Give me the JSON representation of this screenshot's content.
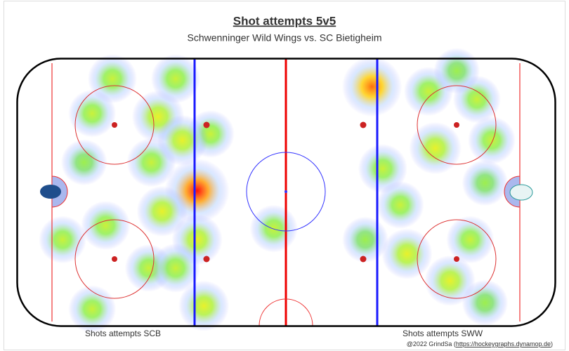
{
  "chart_data": {
    "type": "heatmap",
    "title": "Shot attempts 5v5",
    "subtitle": "Schwenninger Wild Wings vs. SC Bietigheim",
    "left_label": "Shots attempts SCB",
    "right_label": "Shots attempts SWW",
    "credit": [
      "@2022 GrindSa (",
      "https://hockeygraphs.dynamop.de",
      ")"
    ],
    "xlim": [
      -100,
      100
    ],
    "ylim": [
      -42.5,
      42.5
    ],
    "x": [
      -33,
      32,
      -47.5,
      -64.5,
      -41,
      -72,
      -75,
      -50,
      -83,
      -67,
      -46,
      -33,
      -51,
      -72,
      -30.5,
      -28,
      -4.5,
      36,
      42.5,
      29.5,
      55.5,
      53,
      71,
      76.5,
      74,
      45,
      61,
      68.5,
      74,
      63.5,
      -38.5,
      -41
    ],
    "y": [
      0.5,
      33.5,
      24,
      36,
      36,
      25,
      9.5,
      9.5,
      -15,
      -10.5,
      -6,
      -15,
      -24,
      -37,
      -36,
      18.5,
      -11.5,
      7.5,
      -4,
      -15,
      14,
      32,
      29.5,
      16.5,
      3,
      -19.5,
      -28,
      -15,
      -35,
      38.5,
      16.5,
      -24
    ],
    "values": [
      1.0,
      0.85,
      0.6,
      0.5,
      0.5,
      0.45,
      0.4,
      0.5,
      0.45,
      0.5,
      0.55,
      0.55,
      0.45,
      0.45,
      0.55,
      0.45,
      0.45,
      0.5,
      0.45,
      0.4,
      0.6,
      0.5,
      0.45,
      0.45,
      0.4,
      0.55,
      0.55,
      0.45,
      0.4,
      0.4,
      0.55,
      0.5
    ]
  }
}
